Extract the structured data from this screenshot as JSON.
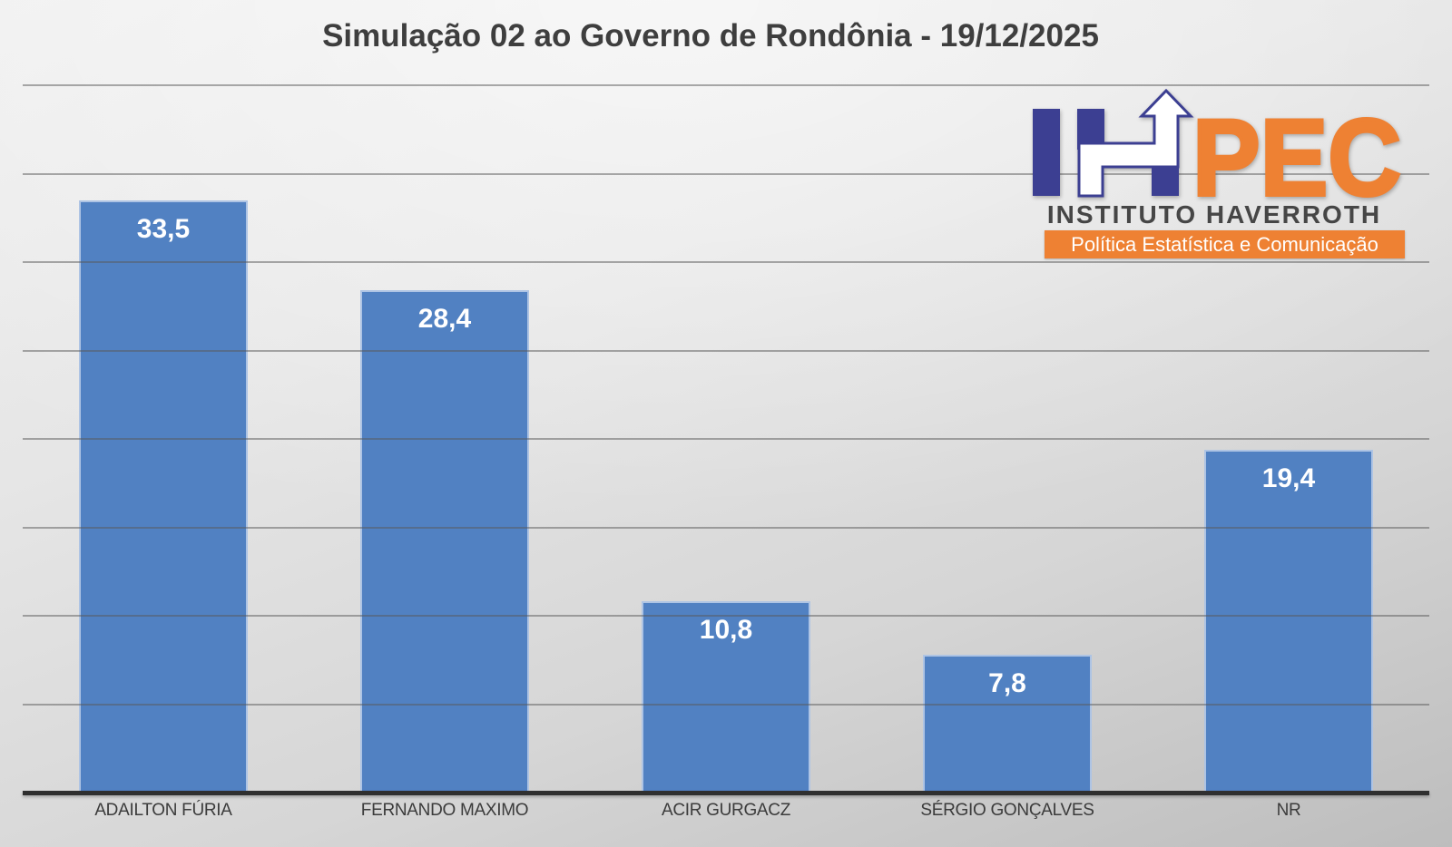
{
  "title": "Simulação 02 ao Governo de Rondônia - 19/12/2025",
  "logo": {
    "acronym_ih": "IH",
    "acronym_pec": "PEC",
    "institute": "INSTITUTO HAVERROTH",
    "tagline": "Política Estatística e Comunicação",
    "colors": {
      "blue": "#3c3f92",
      "orange": "#ee8133"
    }
  },
  "chart_data": {
    "type": "bar",
    "title": "Simulação 02 ao Governo de Rondônia - 19/12/2025",
    "categories": [
      "ADAILTON FÚRIA",
      "FERNANDO MAXIMO",
      "ACIR GURGACZ",
      "SÉRGIO GONÇALVES",
      "NR"
    ],
    "values": [
      33.5,
      28.4,
      10.8,
      7.8,
      19.4
    ],
    "value_labels": [
      "33,5",
      "28,4",
      "10,8",
      "7,8",
      "19,4"
    ],
    "xlabel": "",
    "ylabel": "",
    "ylim": [
      0,
      40
    ],
    "gridline_step": 5,
    "grid": true,
    "legend": "none",
    "bar_color": "#5181c2",
    "bar_border_color": "#aec4e4",
    "axis_line_color": "#2f2f2f",
    "value_label_color": "#ffffff",
    "category_label_color": "#3b3b3b"
  }
}
